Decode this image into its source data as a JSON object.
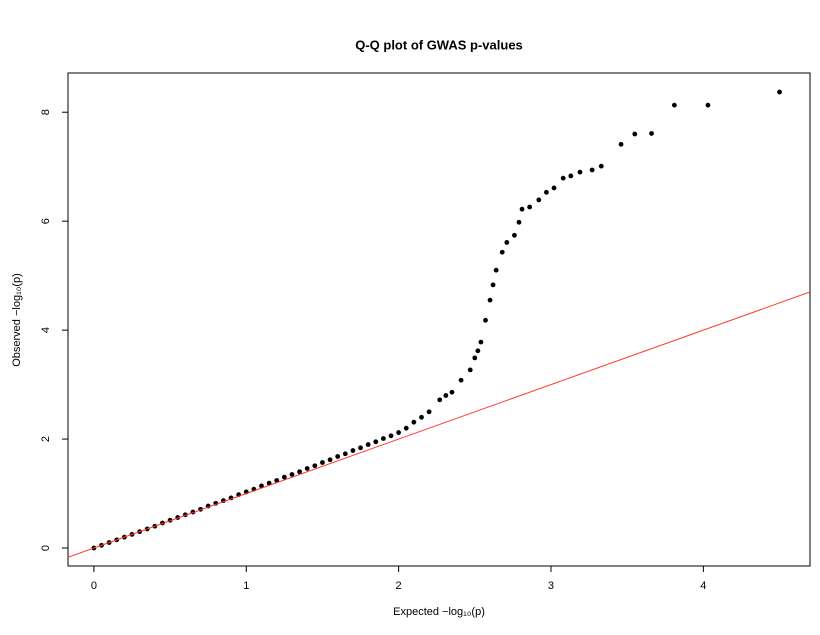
{
  "chart_data": {
    "type": "scatter",
    "title": "Q-Q plot of GWAS p-values",
    "x_label": "Expected −log₁₀(p)",
    "y_label": "Observed −log₁₀(p)",
    "xlim": [
      -0.17,
      4.7
    ],
    "ylim": [
      -0.33,
      8.72
    ],
    "xticks": [
      0,
      1,
      2,
      3,
      4
    ],
    "yticks": [
      0,
      2,
      4,
      6,
      8
    ],
    "color": "#000000",
    "reference_line": {
      "intercept": 0,
      "slope": 1,
      "color": "#ff3b30"
    },
    "x": [
      0,
      0.05,
      0.1,
      0.15,
      0.2,
      0.25,
      0.3,
      0.35,
      0.4,
      0.45,
      0.5,
      0.55,
      0.6,
      0.65,
      0.7,
      0.75,
      0.8,
      0.85,
      0.9,
      0.95,
      1.0,
      1.05,
      1.1,
      1.15,
      1.2,
      1.25,
      1.3,
      1.35,
      1.4,
      1.45,
      1.5,
      1.55,
      1.6,
      1.65,
      1.7,
      1.75,
      1.8,
      1.85,
      1.9,
      1.95,
      2.0,
      2.05,
      2.1,
      2.15,
      2.2,
      2.27,
      2.31,
      2.35,
      2.41,
      2.47,
      2.5,
      2.52,
      2.54,
      2.57,
      2.6,
      2.62,
      2.64,
      2.68,
      2.71,
      2.76,
      2.79,
      2.81,
      2.86,
      2.92,
      2.97,
      3.02,
      3.08,
      3.13,
      3.19,
      3.27,
      3.33,
      3.46,
      3.55,
      3.66,
      3.81,
      4.03,
      4.5
    ],
    "values": [
      0,
      0.05,
      0.1,
      0.15,
      0.2,
      0.25,
      0.3,
      0.35,
      0.4,
      0.46,
      0.51,
      0.56,
      0.61,
      0.66,
      0.71,
      0.77,
      0.82,
      0.87,
      0.92,
      0.98,
      1.03,
      1.08,
      1.14,
      1.19,
      1.24,
      1.3,
      1.35,
      1.4,
      1.46,
      1.51,
      1.57,
      1.62,
      1.68,
      1.73,
      1.79,
      1.84,
      1.9,
      1.95,
      2.01,
      2.06,
      2.12,
      2.2,
      2.31,
      2.4,
      2.5,
      2.72,
      2.8,
      2.86,
      3.08,
      3.27,
      3.49,
      3.62,
      3.78,
      4.18,
      4.55,
      4.83,
      5.1,
      5.43,
      5.61,
      5.74,
      5.98,
      6.22,
      6.26,
      6.39,
      6.53,
      6.61,
      6.79,
      6.83,
      6.9,
      6.94,
      7.01,
      7.41,
      7.6,
      7.61,
      8.13,
      8.13,
      8.37
    ]
  }
}
